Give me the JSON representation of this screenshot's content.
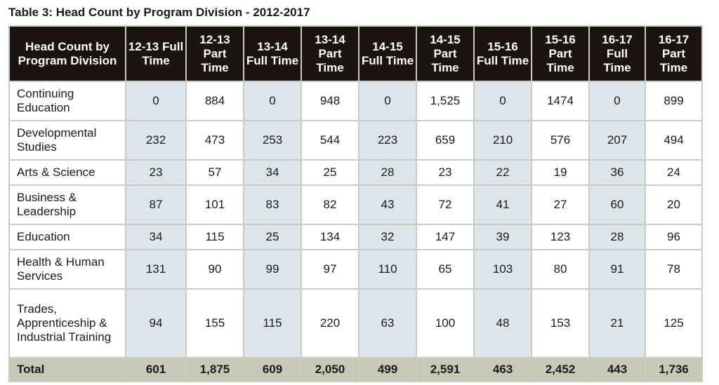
{
  "title": "Table 3: Head Count by Program Division - 2012-2017",
  "headers": [
    "Head Count by Program Division",
    "12-13 Full Time",
    "12-13 Part Time",
    "13-14 Full Time",
    "13-14 Part Time",
    "14-15 Full Time",
    "14-15 Part Time",
    "15-16 Full Time",
    "15-16 Part Time",
    "16-17 Full Time",
    "16-17 Part Time"
  ],
  "rows": [
    {
      "label": "Continuing Education",
      "values": [
        "0",
        "884",
        "0",
        "948",
        "0",
        "1,525",
        "0",
        "1474",
        "0",
        "899"
      ]
    },
    {
      "label": "Developmental Studies",
      "values": [
        "232",
        "473",
        "253",
        "544",
        "223",
        "659",
        "210",
        "576",
        "207",
        "494"
      ]
    },
    {
      "label": "Arts & Science",
      "values": [
        "23",
        "57",
        "34",
        "25",
        "28",
        "23",
        "22",
        "19",
        "36",
        "24"
      ]
    },
    {
      "label": "Business & Leadership",
      "values": [
        "87",
        "101",
        "83",
        "82",
        "43",
        "72",
        "41",
        "27",
        "60",
        "20"
      ]
    },
    {
      "label": "Education",
      "values": [
        "34",
        "115",
        "25",
        "134",
        "32",
        "147",
        "39",
        "123",
        "28",
        "96"
      ]
    },
    {
      "label": "Health & Human Services",
      "values": [
        "131",
        "90",
        "99",
        "97",
        "110",
        "65",
        "103",
        "80",
        "91",
        "78"
      ]
    },
    {
      "label": "Trades, Apprenticeship & Industrial Training",
      "values": [
        "94",
        "155",
        "115",
        "220",
        "63",
        "100",
        "48",
        "153",
        "21",
        "125"
      ]
    }
  ],
  "total": {
    "label": "Total",
    "values": [
      "601",
      "1,875",
      "609",
      "2,050",
      "499",
      "2,591",
      "463",
      "2,452",
      "443",
      "1,736"
    ]
  }
}
